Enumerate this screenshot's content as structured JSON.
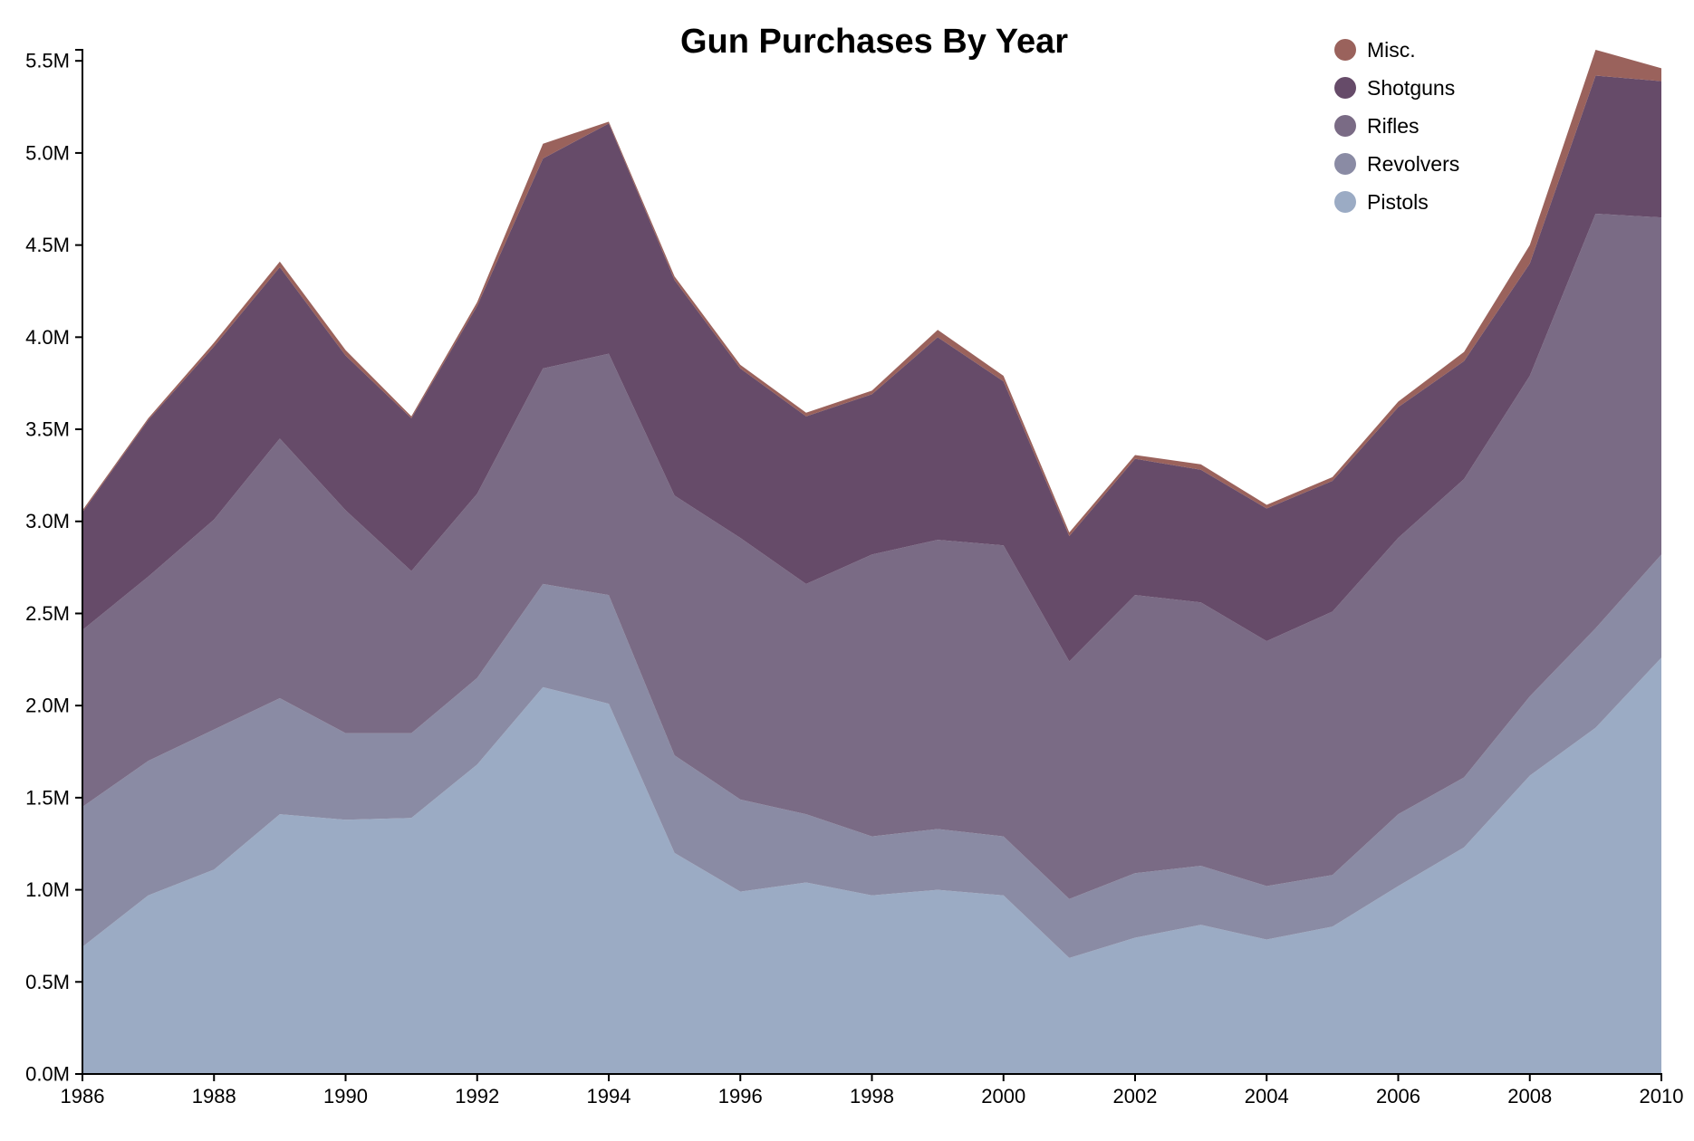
{
  "chart_data": {
    "type": "area",
    "stacked": true,
    "title": "Gun Purchases By Year",
    "xlabel": "",
    "ylabel": "",
    "x": [
      1986,
      1987,
      1988,
      1989,
      1990,
      1991,
      1992,
      1993,
      1994,
      1995,
      1996,
      1997,
      1998,
      1999,
      2000,
      2001,
      2002,
      2003,
      2004,
      2005,
      2006,
      2007,
      2008,
      2009,
      2010
    ],
    "x_ticks": [
      "1986",
      "1988",
      "1990",
      "1992",
      "1994",
      "1996",
      "1998",
      "2000",
      "2002",
      "2004",
      "2006",
      "2008",
      "2010"
    ],
    "y_ticks": [
      "0.0M",
      "0.5M",
      "1.0M",
      "1.5M",
      "2.0M",
      "2.5M",
      "3.0M",
      "3.5M",
      "4.0M",
      "4.5M",
      "5.0M",
      "5.5M"
    ],
    "xlim": [
      1986,
      2010
    ],
    "ylim": [
      0,
      5.56
    ],
    "y_unit": "millions",
    "grid": false,
    "legend_position": "top-right",
    "series": [
      {
        "name": "Pistols",
        "color": "#9babc4",
        "values": [
          0.69,
          0.97,
          1.11,
          1.41,
          1.38,
          1.39,
          1.68,
          2.1,
          2.01,
          1.2,
          0.99,
          1.04,
          0.97,
          1.0,
          0.97,
          0.63,
          0.74,
          0.81,
          0.73,
          0.8,
          1.02,
          1.23,
          1.62,
          1.88,
          2.26
        ]
      },
      {
        "name": "Revolvers",
        "color": "#8a8ba4",
        "values": [
          0.76,
          0.73,
          0.76,
          0.63,
          0.47,
          0.46,
          0.47,
          0.56,
          0.59,
          0.53,
          0.5,
          0.37,
          0.32,
          0.33,
          0.32,
          0.32,
          0.35,
          0.32,
          0.29,
          0.28,
          0.39,
          0.38,
          0.43,
          0.54,
          0.56
        ]
      },
      {
        "name": "Rifles",
        "color": "#7a6b85",
        "values": [
          0.96,
          1.0,
          1.14,
          1.41,
          1.21,
          0.88,
          1.0,
          1.17,
          1.31,
          1.41,
          1.42,
          1.25,
          1.53,
          1.57,
          1.58,
          1.29,
          1.51,
          1.43,
          1.33,
          1.43,
          1.5,
          1.62,
          1.74,
          2.25,
          1.83
        ]
      },
      {
        "name": "Shotguns",
        "color": "#664b69",
        "values": [
          0.64,
          0.85,
          0.94,
          0.93,
          0.84,
          0.83,
          1.02,
          1.14,
          1.25,
          1.17,
          0.92,
          0.91,
          0.87,
          1.1,
          0.89,
          0.68,
          0.74,
          0.72,
          0.72,
          0.71,
          0.71,
          0.64,
          0.61,
          0.75,
          0.74
        ]
      },
      {
        "name": "Misc.",
        "color": "#9a625c",
        "values": [
          0.01,
          0.01,
          0.02,
          0.03,
          0.03,
          0.01,
          0.02,
          0.08,
          0.01,
          0.02,
          0.02,
          0.02,
          0.02,
          0.04,
          0.03,
          0.02,
          0.02,
          0.03,
          0.02,
          0.02,
          0.03,
          0.05,
          0.1,
          0.14,
          0.07
        ]
      }
    ]
  }
}
